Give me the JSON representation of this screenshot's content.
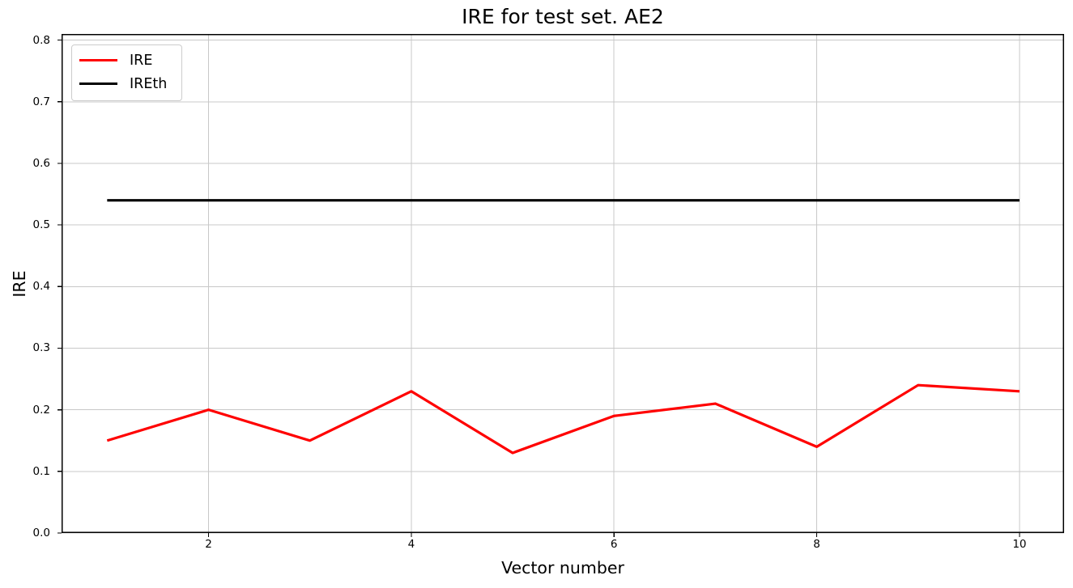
{
  "chart_data": {
    "type": "line",
    "title": "IRE for test set. AE2",
    "xlabel": "Vector number",
    "ylabel": "IRE",
    "x": [
      1,
      2,
      3,
      4,
      5,
      6,
      7,
      8,
      9,
      10
    ],
    "series": [
      {
        "name": "IRE",
        "color": "#ff0000",
        "values": [
          0.15,
          0.2,
          0.15,
          0.23,
          0.13,
          0.19,
          0.21,
          0.14,
          0.24,
          0.23
        ]
      },
      {
        "name": "IREth",
        "color": "#000000",
        "values": [
          0.54,
          0.54,
          0.54,
          0.54,
          0.54,
          0.54,
          0.54,
          0.54,
          0.54,
          0.54
        ]
      }
    ],
    "xlim": [
      0.55,
      10.44
    ],
    "ylim": [
      0,
      0.81
    ],
    "xtick_labels": [
      "2",
      "4",
      "6",
      "8",
      "10"
    ],
    "xtick_values": [
      2,
      4,
      6,
      8,
      10
    ],
    "ytick_labels": [
      "0.0",
      "0.1",
      "0.2",
      "0.3",
      "0.4",
      "0.5",
      "0.6",
      "0.7",
      "0.8"
    ],
    "ytick_values": [
      0.0,
      0.1,
      0.2,
      0.3,
      0.4,
      0.5,
      0.6,
      0.7,
      0.8
    ],
    "grid": true,
    "grid_color": "#c8c8c8",
    "spine_color": "#000000",
    "legend_position": "upper left"
  }
}
